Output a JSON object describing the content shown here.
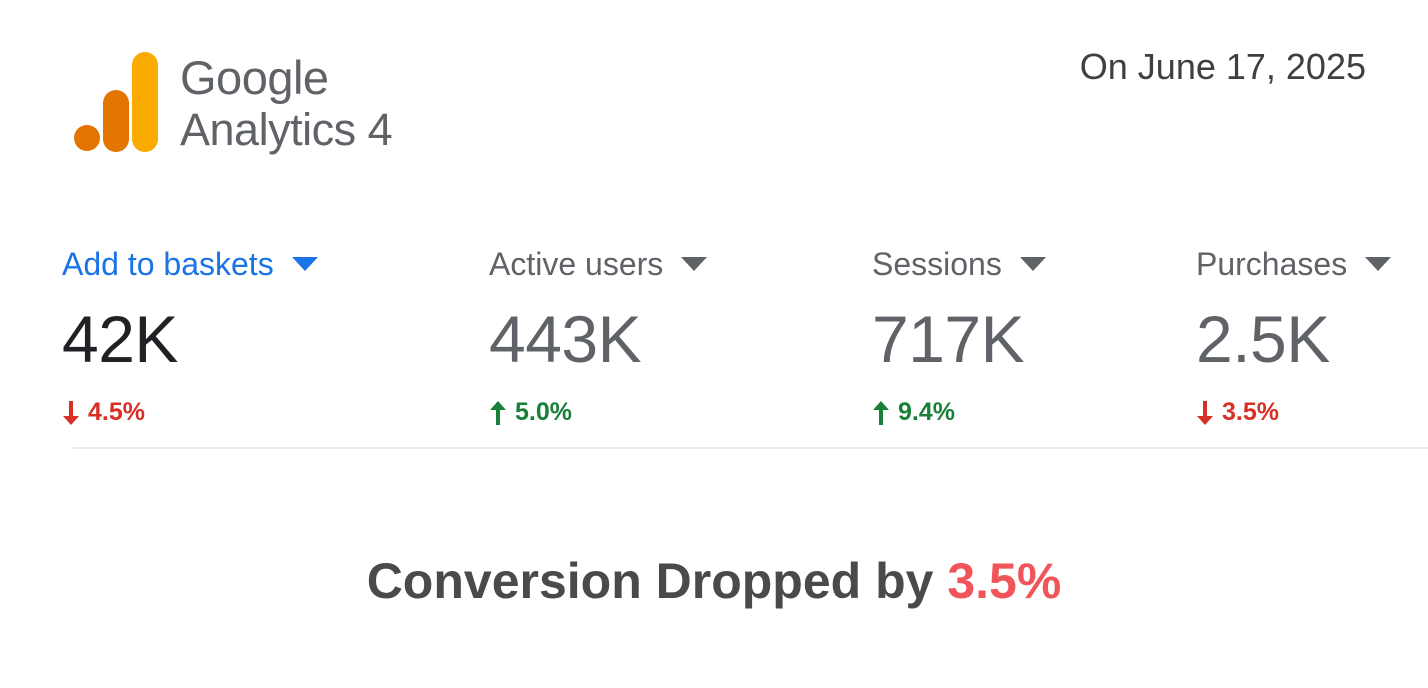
{
  "brand": {
    "name": "Google",
    "product": "Analytics",
    "version": "4",
    "logo_colors": {
      "bar_tall": "#f9ab00",
      "bar_mid": "#e37400",
      "dot": "#e37400"
    }
  },
  "date_label": "On June 17, 2025",
  "metrics": [
    {
      "label": "Add to baskets",
      "value": "42K",
      "change": "4.5%",
      "direction": "down",
      "selected": true
    },
    {
      "label": "Active users",
      "value": "443K",
      "change": "5.0%",
      "direction": "up",
      "selected": false
    },
    {
      "label": "Sessions",
      "value": "717K",
      "change": "9.4%",
      "direction": "up",
      "selected": false
    },
    {
      "label": "Purchases",
      "value": "2.5K",
      "change": "3.5%",
      "direction": "down",
      "selected": false
    }
  ],
  "colors": {
    "selected_label": "#1a73e8",
    "decrease": "#d93025",
    "increase": "#188038",
    "headline_accent": "#f0555a"
  },
  "icons": {
    "dropdown": "caret-down-icon",
    "decrease": "arrow-down-icon",
    "increase": "arrow-up-icon"
  },
  "headline": {
    "prefix": "Conversion Dropped by ",
    "value": "3.5%"
  }
}
